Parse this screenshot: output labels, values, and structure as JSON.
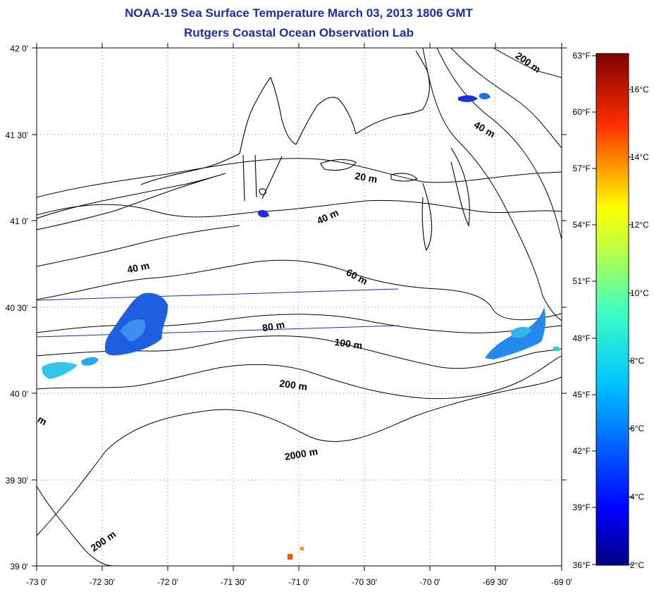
{
  "header": {
    "title": "NOAA-19 Sea Surface Temperature March 03, 2013 1806 GMT",
    "subtitle": "Rutgers Coastal Ocean Observation Lab"
  },
  "axes": {
    "lon_labels": [
      "-73 0'",
      "-72 30'",
      "-72 0'",
      "-71 30'",
      "-71 0'",
      "-70 30'",
      "-70 0'",
      "-69 30'",
      "-69 0'"
    ],
    "lat_labels": [
      "42 0'",
      "41 30'",
      "41 0'",
      "40 30'",
      "40 0'",
      "39 30'",
      "39 0'"
    ],
    "lon_range": [
      -73,
      -69
    ],
    "lat_range": [
      39,
      42
    ]
  },
  "colorbar": {
    "fahrenheit_labels": [
      "63°F",
      "60°F",
      "57°F",
      "54°F",
      "51°F",
      "48°F",
      "45°F",
      "42°F",
      "39°F",
      "36°F"
    ],
    "celsius_labels": [
      "16°C",
      "14°C",
      "12°C",
      "10°C",
      "8°C",
      "6°C",
      "4°C",
      "2°C"
    ],
    "colormap": "jet",
    "top_color": "#800000",
    "bottom_color": "#000080"
  },
  "contours": [
    {
      "label": "200 m"
    },
    {
      "label": "40 m"
    },
    {
      "label": "20 m"
    },
    {
      "label": "40 m"
    },
    {
      "label": "40 m"
    },
    {
      "label": "60 m"
    },
    {
      "label": "80 m"
    },
    {
      "label": "100 m"
    },
    {
      "label": "200 m"
    },
    {
      "label": "2000 m"
    },
    {
      "label": "200 m"
    },
    {
      "label": "m"
    }
  ],
  "colors": {
    "title": "#1a2fa8",
    "coast": "#000000",
    "sst_blue": "#1e5fe0",
    "sst_cyan": "#33c6e8",
    "sst_orange": "#e07020"
  }
}
